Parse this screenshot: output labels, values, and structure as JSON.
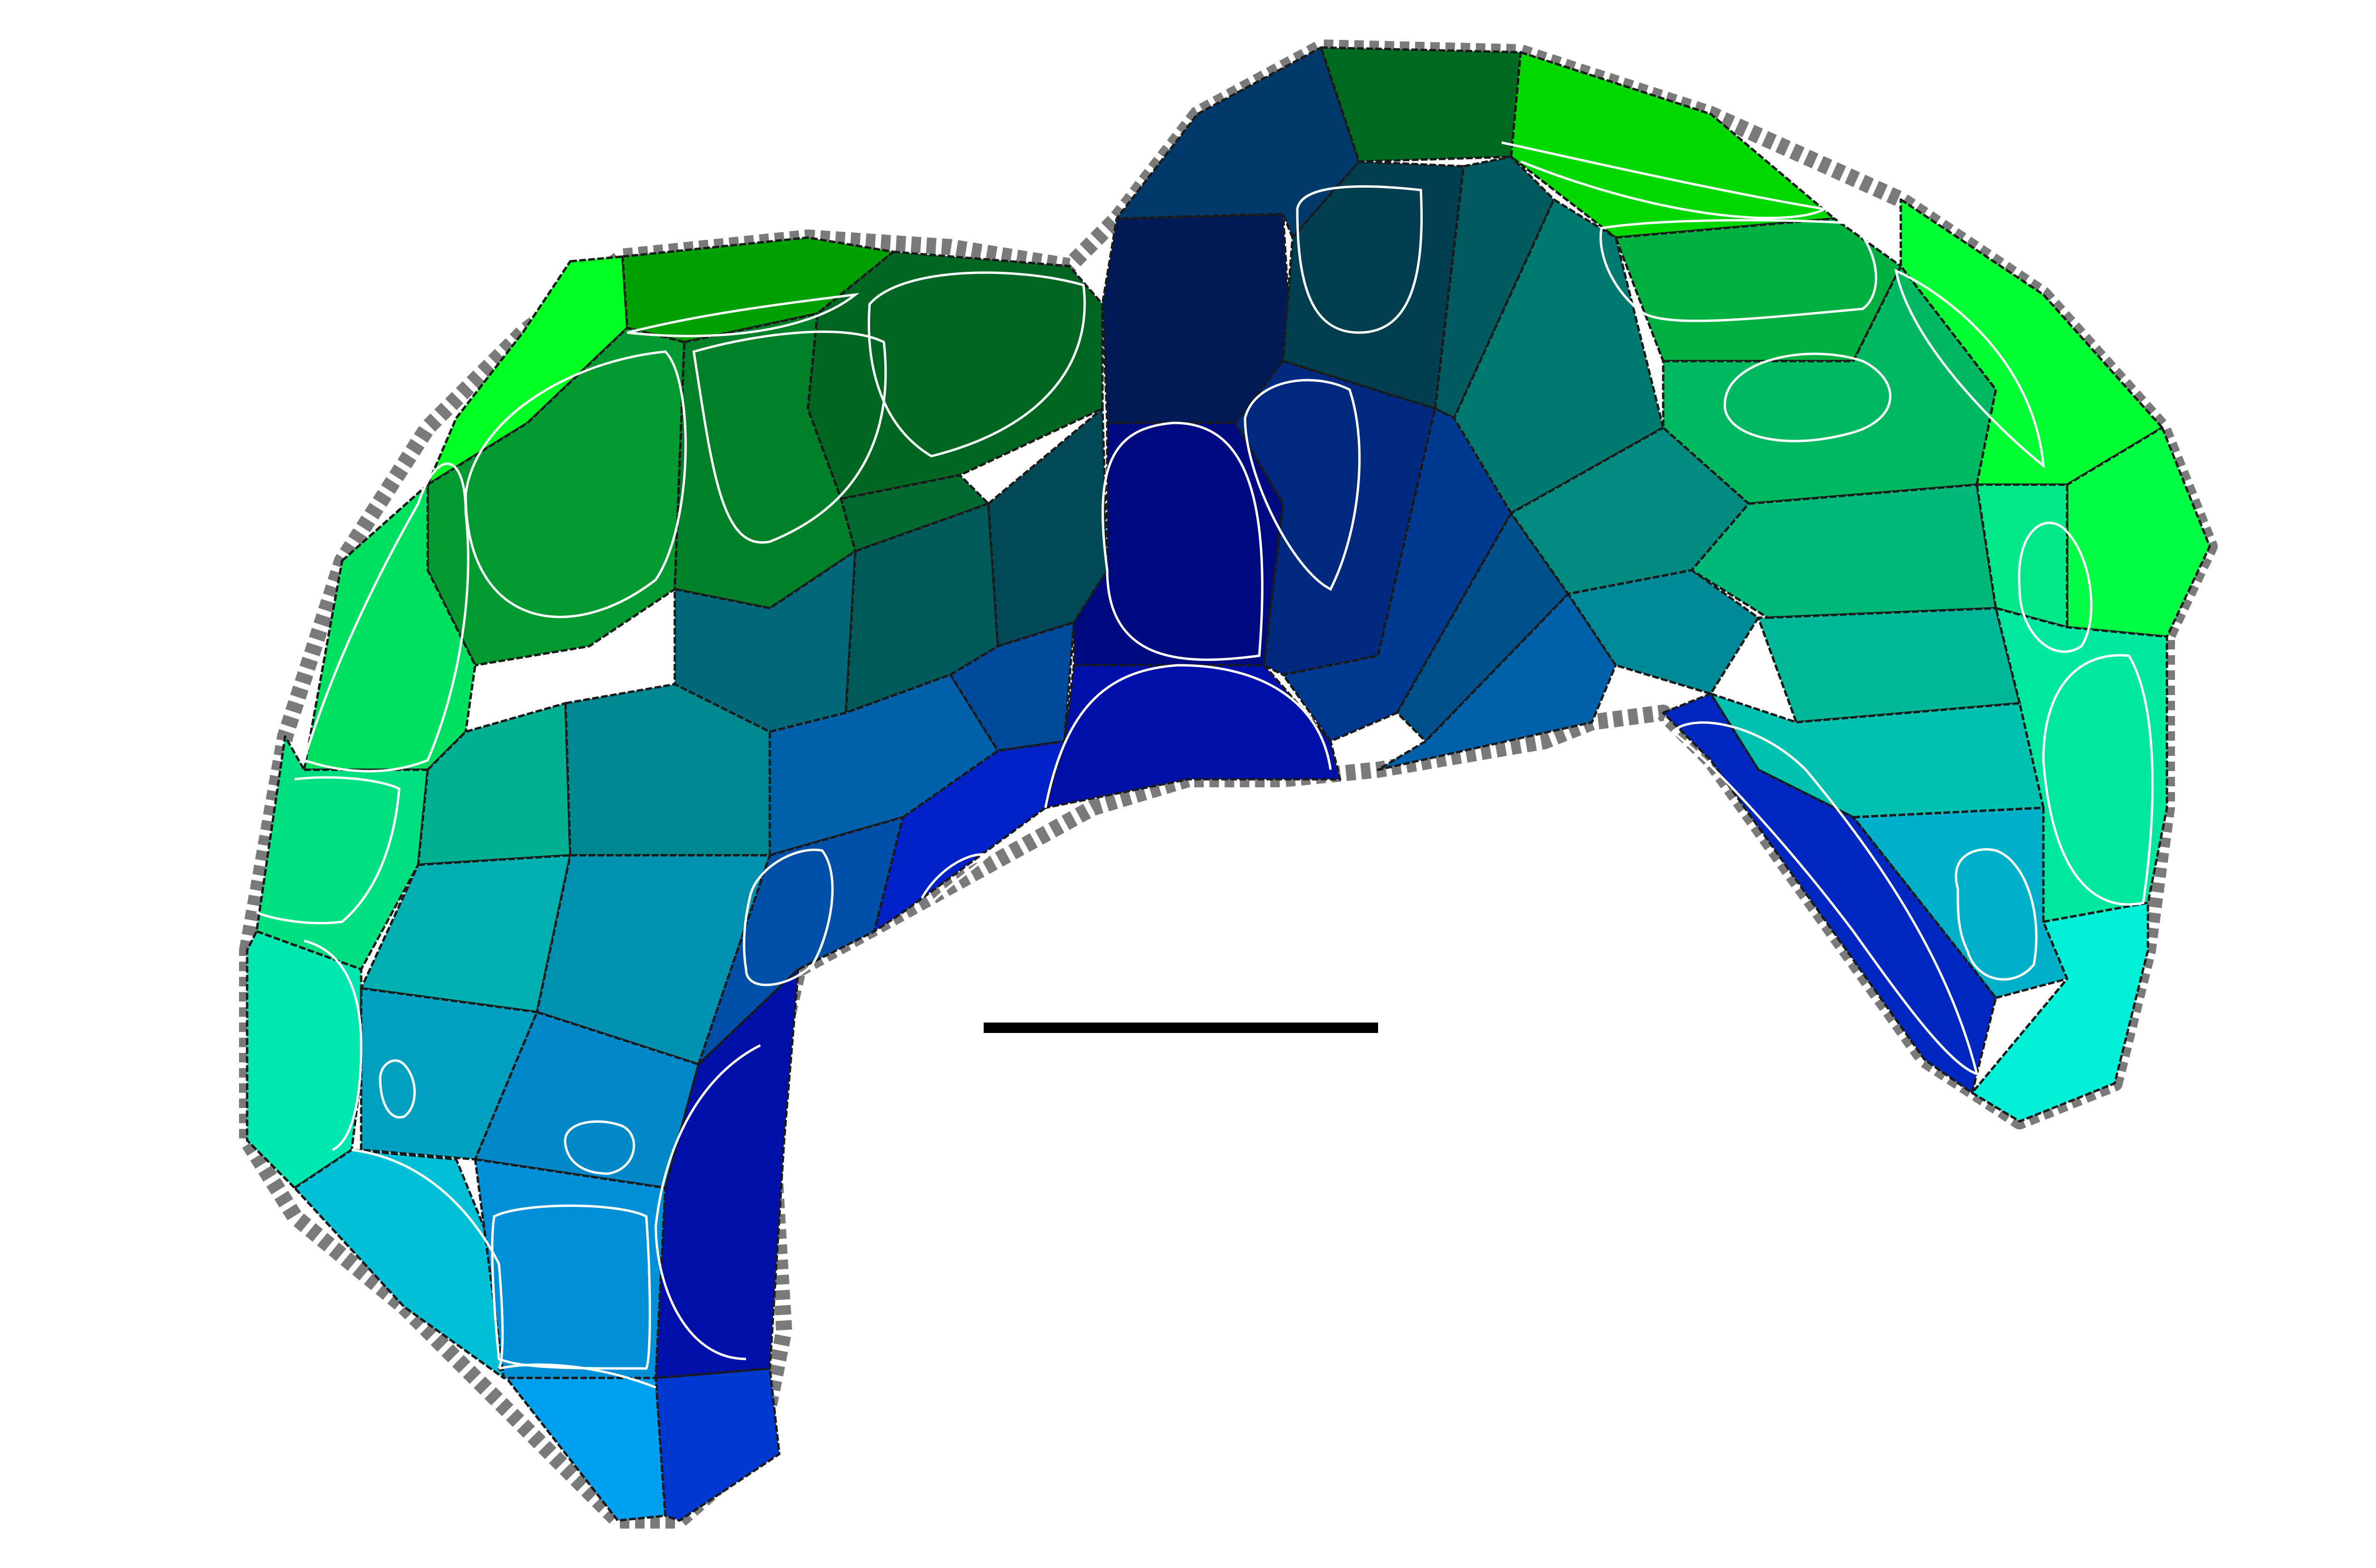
{
  "diagram": {
    "kind": "segmented-cell-tissue-map",
    "background_color": "#ffffff",
    "outline_color": "#7a7a7a",
    "cell_edge_color": "#1a1a1a",
    "vacuole_outline_color": "#ffffff",
    "scale_bar_color": "#000000",
    "palette": {
      "bright_green": "#00ff22",
      "dark_green": "#006622",
      "teal": "#00a090",
      "cyan": "#00c8d8",
      "navy": "#001a55",
      "deep_blue": "#0010b0"
    }
  }
}
